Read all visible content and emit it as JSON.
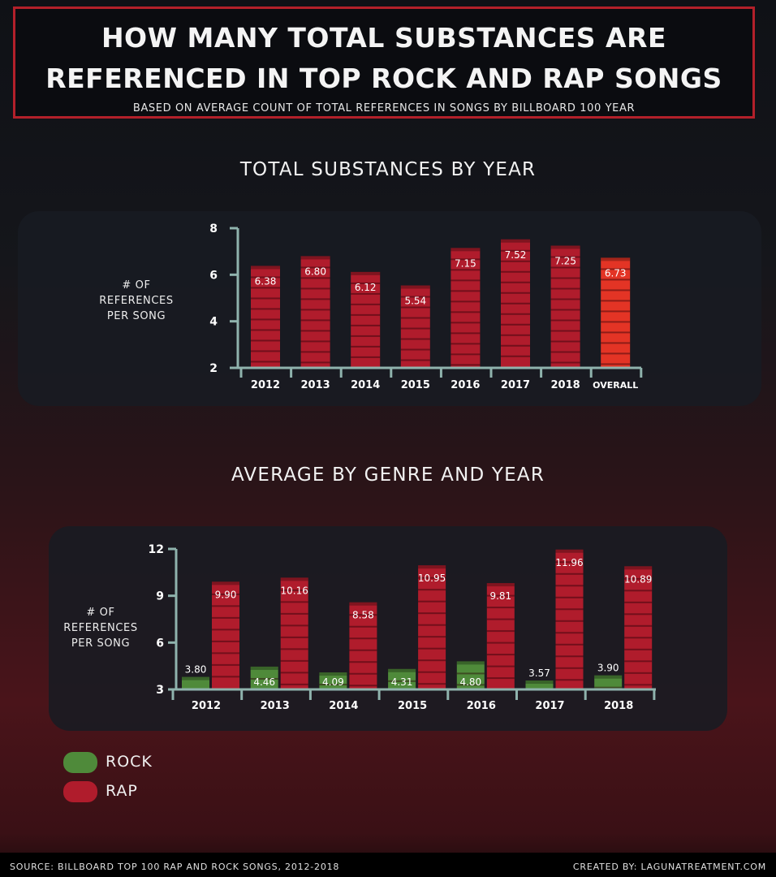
{
  "header": {
    "title_line1": "HOW MANY TOTAL SUBSTANCES ARE",
    "title_line2": "REFERENCED IN TOP ROCK AND RAP SONGS",
    "subtitle": "BASED ON AVERAGE COUNT OF TOTAL REFERENCES IN SONGS BY BILLBOARD 100 YEAR"
  },
  "colors": {
    "rap": "#b01c2c",
    "overall": "#e33425",
    "rock": "#4f8a3a",
    "axis": "#8fb3ad",
    "title_border": "#b3202a"
  },
  "chart_data": [
    {
      "type": "bar",
      "title": "TOTAL SUBSTANCES BY YEAR",
      "ylabel": "# OF REFERENCES PER SONG",
      "categories": [
        "2012",
        "2013",
        "2014",
        "2015",
        "2016",
        "2017",
        "2018",
        "OVERALL"
      ],
      "values": [
        6.38,
        6.8,
        6.12,
        5.54,
        7.15,
        7.52,
        7.25,
        6.73
      ],
      "value_labels": [
        "6.38",
        "6.80",
        "6.12",
        "5.54",
        "7.15",
        "7.52",
        "7.25",
        "6.73"
      ],
      "yticks": [
        "2",
        "4",
        "6",
        "8"
      ],
      "ylim": [
        2,
        8
      ],
      "grid": false
    },
    {
      "type": "bar",
      "title": "AVERAGE BY GENRE AND YEAR",
      "ylabel": "# OF REFERENCES PER SONG",
      "categories": [
        "2012",
        "2013",
        "2014",
        "2015",
        "2016",
        "2017",
        "2018"
      ],
      "series": [
        {
          "name": "ROCK",
          "values": [
            3.8,
            4.46,
            4.09,
            4.31,
            4.8,
            3.57,
            3.9
          ],
          "value_labels": [
            "3.80",
            "4.46",
            "4.09",
            "4.31",
            "4.80",
            "3.57",
            "3.90"
          ]
        },
        {
          "name": "RAP",
          "values": [
            9.9,
            10.16,
            8.58,
            10.95,
            9.81,
            11.96,
            10.89
          ],
          "value_labels": [
            "9.90",
            "10.16",
            "8.58",
            "10.95",
            "9.81",
            "11.96",
            "10.89"
          ]
        }
      ],
      "yticks": [
        "3",
        "6",
        "9",
        "12"
      ],
      "ylim": [
        3,
        12
      ],
      "legend": "bottom-left",
      "grid": false
    }
  ],
  "legend": {
    "rock_label": "ROCK",
    "rap_label": "RAP"
  },
  "footer": {
    "source": "SOURCE: BILLBOARD TOP 100 RAP AND ROCK SONGS, 2012-2018",
    "credit": "CREATED BY: LAGUNATREATMENT.COM"
  }
}
